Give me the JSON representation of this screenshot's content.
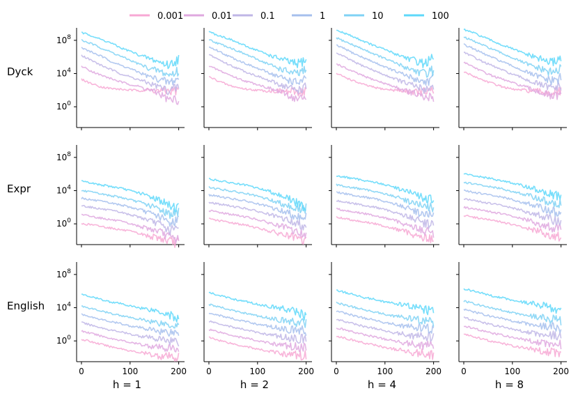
{
  "chart_data": {
    "type": "line",
    "title": "",
    "legend": {
      "placement": "top-center",
      "entries": [
        {
          "label": "0.001",
          "color": "#f7a8d4"
        },
        {
          "label": "0.01",
          "color": "#dfa8df"
        },
        {
          "label": "0.1",
          "color": "#bfb6e6"
        },
        {
          "label": "1",
          "color": "#a6bfed"
        },
        {
          "label": "10",
          "color": "#7fd2f4"
        },
        {
          "label": "100",
          "color": "#5ed8fa"
        }
      ]
    },
    "rows": [
      "Dyck",
      "Expr",
      "English"
    ],
    "columns": [
      "h = 1",
      "h = 2",
      "h = 4",
      "h = 8"
    ],
    "x_ticks": [
      0,
      100,
      200
    ],
    "x_range": [
      -10,
      212
    ],
    "y_scale": "log",
    "y_ticks": [
      {
        "exp": 0,
        "label": "10^0"
      },
      {
        "exp": 4,
        "label": "10^4"
      },
      {
        "exp": 8,
        "label": "10^8"
      }
    ],
    "y_range_log10": [
      -2.5,
      9.5
    ],
    "x_points": [
      0,
      20,
      40,
      60,
      80,
      100,
      120,
      140,
      160,
      180,
      200
    ],
    "series": {
      "Dyck": {
        "h = 1": [
          [
            3.3,
            2.8,
            2.4,
            2.2,
            2.1,
            2.0,
            2.0,
            2.0,
            1.9,
            1.9,
            2.0
          ],
          [
            4.9,
            4.3,
            3.8,
            3.4,
            3.0,
            2.7,
            2.4,
            2.0,
            1.6,
            0.8,
            0.9
          ],
          [
            6.2,
            5.6,
            5.0,
            4.5,
            4.0,
            3.6,
            3.2,
            2.8,
            2.4,
            1.9,
            2.4
          ],
          [
            7.1,
            6.6,
            6.1,
            5.5,
            5.0,
            4.6,
            4.1,
            3.6,
            3.3,
            2.9,
            3.4
          ],
          [
            8.0,
            7.6,
            7.1,
            6.6,
            6.1,
            5.6,
            5.1,
            4.6,
            4.3,
            3.8,
            4.3
          ],
          [
            8.9,
            8.6,
            8.1,
            7.7,
            7.1,
            6.7,
            6.2,
            5.8,
            5.4,
            5.0,
            5.8
          ]
        ],
        "h = 2": [
          [
            3.6,
            3.1,
            2.6,
            2.3,
            2.1,
            2.0,
            1.9,
            1.9,
            1.8,
            1.8,
            1.9
          ],
          [
            4.9,
            4.4,
            3.9,
            3.4,
            3.0,
            2.7,
            2.3,
            1.9,
            1.5,
            0.9,
            1.0
          ],
          [
            6.3,
            5.7,
            5.1,
            4.6,
            4.1,
            3.7,
            3.2,
            2.8,
            2.4,
            2.0,
            2.3
          ],
          [
            7.2,
            6.7,
            6.1,
            5.6,
            5.1,
            4.6,
            4.2,
            3.7,
            3.3,
            2.9,
            3.2
          ],
          [
            8.1,
            7.6,
            7.2,
            6.7,
            6.2,
            5.7,
            5.2,
            4.7,
            4.3,
            3.9,
            4.3
          ],
          [
            9.0,
            8.6,
            8.2,
            7.7,
            7.2,
            6.8,
            6.3,
            5.9,
            5.5,
            5.1,
            5.7
          ]
        ],
        "h = 4": [
          [
            4.0,
            3.5,
            3.0,
            2.6,
            2.3,
            2.1,
            2.0,
            1.9,
            1.8,
            1.8,
            1.8
          ],
          [
            5.2,
            4.6,
            4.1,
            3.6,
            3.2,
            2.8,
            2.4,
            2.0,
            1.6,
            1.0,
            1.2
          ],
          [
            6.5,
            5.9,
            5.3,
            4.8,
            4.3,
            3.8,
            3.4,
            2.9,
            2.5,
            2.1,
            2.4
          ],
          [
            7.4,
            6.9,
            6.3,
            5.8,
            5.3,
            4.8,
            4.3,
            3.8,
            3.4,
            3.0,
            3.3
          ],
          [
            8.3,
            7.8,
            7.3,
            6.8,
            6.3,
            5.8,
            5.3,
            4.8,
            4.4,
            4.0,
            4.4
          ],
          [
            9.2,
            8.8,
            8.3,
            7.8,
            7.3,
            6.9,
            6.4,
            6.0,
            5.6,
            5.2,
            5.8
          ]
        ],
        "h = 8": [
          [
            4.2,
            3.7,
            3.2,
            2.8,
            2.4,
            2.1,
            2.0,
            1.9,
            1.8,
            1.7,
            1.8
          ],
          [
            5.4,
            4.8,
            4.2,
            3.7,
            3.3,
            2.9,
            2.5,
            2.1,
            1.7,
            1.2,
            1.3
          ],
          [
            6.6,
            6.0,
            5.4,
            4.9,
            4.4,
            3.9,
            3.5,
            3.0,
            2.6,
            2.2,
            2.5
          ],
          [
            7.5,
            7.0,
            6.4,
            5.9,
            5.4,
            4.9,
            4.4,
            3.9,
            3.5,
            3.1,
            3.4
          ],
          [
            8.4,
            7.9,
            7.4,
            6.9,
            6.4,
            5.9,
            5.4,
            4.9,
            4.5,
            4.1,
            4.5
          ],
          [
            9.3,
            8.9,
            8.4,
            7.9,
            7.4,
            7.0,
            6.5,
            6.1,
            5.7,
            5.3,
            5.9
          ]
        ]
      },
      "Expr": {
        "h = 1": [
          [
            0.0,
            -0.1,
            -0.3,
            -0.5,
            -0.7,
            -0.9,
            -1.2,
            -1.5,
            -1.7,
            -2.1,
            -2.3
          ],
          [
            1.1,
            0.9,
            0.7,
            0.5,
            0.3,
            0.0,
            -0.3,
            -0.6,
            -0.9,
            -1.6,
            -1.9
          ],
          [
            2.2,
            2.0,
            1.8,
            1.6,
            1.4,
            1.1,
            0.8,
            0.4,
            0.0,
            -0.8,
            -0.6
          ],
          [
            3.1,
            2.9,
            2.7,
            2.5,
            2.3,
            2.0,
            1.7,
            1.3,
            0.9,
            0.1,
            0.5
          ],
          [
            4.0,
            3.8,
            3.6,
            3.4,
            3.2,
            2.9,
            2.6,
            2.2,
            1.8,
            1.2,
            1.3
          ],
          [
            5.1,
            4.9,
            4.7,
            4.5,
            4.3,
            4.0,
            3.7,
            3.3,
            2.9,
            2.2,
            2.0
          ]
        ],
        "h = 2": [
          [
            0.6,
            0.4,
            0.2,
            0.0,
            -0.2,
            -0.5,
            -0.8,
            -1.1,
            -1.4,
            -1.8,
            -2.1
          ],
          [
            1.6,
            1.4,
            1.2,
            1.0,
            0.8,
            0.5,
            0.2,
            -0.2,
            -0.5,
            -1.0,
            -1.3
          ],
          [
            2.6,
            2.4,
            2.2,
            2.0,
            1.8,
            1.5,
            1.2,
            0.8,
            0.5,
            0.0,
            -0.2
          ],
          [
            3.5,
            3.3,
            3.1,
            2.9,
            2.7,
            2.4,
            2.1,
            1.7,
            1.4,
            0.9,
            0.9
          ],
          [
            4.4,
            4.2,
            4.0,
            3.8,
            3.6,
            3.3,
            3.0,
            2.6,
            2.3,
            1.8,
            1.8
          ],
          [
            5.4,
            5.2,
            5.0,
            4.8,
            4.6,
            4.3,
            4.0,
            3.6,
            3.2,
            2.5,
            2.0
          ]
        ],
        "h = 4": [
          [
            0.8,
            0.6,
            0.4,
            0.2,
            0.0,
            -0.3,
            -0.6,
            -0.9,
            -1.3,
            -1.7,
            -1.9
          ],
          [
            1.8,
            1.6,
            1.4,
            1.2,
            1.0,
            0.7,
            0.4,
            0.0,
            -0.4,
            -0.9,
            -1.1
          ],
          [
            2.8,
            2.6,
            2.4,
            2.2,
            2.0,
            1.7,
            1.4,
            1.0,
            0.6,
            0.1,
            0.0
          ],
          [
            3.8,
            3.6,
            3.4,
            3.2,
            3.0,
            2.7,
            2.4,
            2.0,
            1.6,
            1.1,
            1.0
          ],
          [
            4.7,
            4.5,
            4.3,
            4.1,
            3.9,
            3.6,
            3.3,
            2.9,
            2.5,
            2.0,
            2.0
          ],
          [
            5.8,
            5.6,
            5.4,
            5.2,
            5.0,
            4.7,
            4.4,
            4.0,
            3.6,
            3.1,
            2.9
          ]
        ],
        "h = 8": [
          [
            1.0,
            0.8,
            0.6,
            0.4,
            0.2,
            -0.1,
            -0.4,
            -0.7,
            -1.0,
            -1.4,
            -1.7
          ],
          [
            2.0,
            1.8,
            1.6,
            1.4,
            1.2,
            0.9,
            0.6,
            0.3,
            -0.1,
            -0.5,
            -0.8
          ],
          [
            3.0,
            2.8,
            2.6,
            2.4,
            2.2,
            1.9,
            1.6,
            1.3,
            0.9,
            0.5,
            0.3
          ],
          [
            4.0,
            3.8,
            3.6,
            3.4,
            3.2,
            2.9,
            2.6,
            2.3,
            1.9,
            1.5,
            1.3
          ],
          [
            5.0,
            4.8,
            4.6,
            4.4,
            4.2,
            3.9,
            3.6,
            3.3,
            2.9,
            2.5,
            2.3
          ],
          [
            6.0,
            5.8,
            5.6,
            5.4,
            5.2,
            4.9,
            4.6,
            4.3,
            3.9,
            3.5,
            3.3
          ]
        ]
      },
      "English": {
        "h = 1": [
          [
            0.2,
            -0.1,
            -0.4,
            -0.7,
            -0.9,
            -1.2,
            -1.4,
            -1.6,
            -1.8,
            -1.9,
            -2.0
          ],
          [
            1.2,
            0.9,
            0.6,
            0.3,
            0.1,
            -0.2,
            -0.4,
            -0.6,
            -0.8,
            -0.9,
            -1.0
          ],
          [
            2.2,
            1.9,
            1.6,
            1.3,
            1.1,
            0.8,
            0.6,
            0.4,
            0.2,
            0.1,
            0.0
          ],
          [
            3.2,
            2.9,
            2.6,
            2.3,
            2.1,
            1.8,
            1.6,
            1.4,
            1.2,
            1.1,
            1.0
          ],
          [
            4.2,
            3.9,
            3.6,
            3.3,
            3.1,
            2.8,
            2.6,
            2.4,
            2.2,
            2.0,
            1.9
          ],
          [
            5.6,
            5.3,
            5.0,
            4.7,
            4.5,
            4.2,
            4.0,
            3.8,
            3.6,
            3.2,
            2.6
          ]
        ],
        "h = 2": [
          [
            0.4,
            0.1,
            -0.2,
            -0.5,
            -0.7,
            -1.0,
            -1.2,
            -1.4,
            -1.6,
            -1.7,
            -1.8
          ],
          [
            1.4,
            1.1,
            0.8,
            0.5,
            0.3,
            0.0,
            -0.2,
            -0.4,
            -0.6,
            -0.7,
            -0.8
          ],
          [
            2.4,
            2.1,
            1.8,
            1.5,
            1.3,
            1.0,
            0.8,
            0.6,
            0.4,
            0.3,
            0.2
          ],
          [
            3.4,
            3.1,
            2.8,
            2.5,
            2.3,
            2.0,
            1.8,
            1.6,
            1.4,
            1.3,
            1.2
          ],
          [
            4.4,
            4.1,
            3.8,
            3.5,
            3.3,
            3.0,
            2.8,
            2.6,
            2.4,
            2.2,
            2.1
          ],
          [
            5.8,
            5.5,
            5.2,
            4.9,
            4.7,
            4.4,
            4.2,
            4.0,
            3.8,
            3.5,
            3.0
          ]
        ],
        "h = 4": [
          [
            0.6,
            0.3,
            0.0,
            -0.3,
            -0.5,
            -0.8,
            -1.0,
            -1.2,
            -1.4,
            -1.5,
            -1.6
          ],
          [
            1.6,
            1.3,
            1.0,
            0.7,
            0.5,
            0.2,
            0.0,
            -0.2,
            -0.4,
            -0.5,
            -0.6
          ],
          [
            2.6,
            2.3,
            2.0,
            1.7,
            1.5,
            1.2,
            1.0,
            0.8,
            0.6,
            0.5,
            0.4
          ],
          [
            3.6,
            3.3,
            3.0,
            2.7,
            2.5,
            2.2,
            2.0,
            1.8,
            1.6,
            1.5,
            1.4
          ],
          [
            4.6,
            4.3,
            4.0,
            3.7,
            3.5,
            3.2,
            3.0,
            2.8,
            2.6,
            2.4,
            2.3
          ],
          [
            6.1,
            5.8,
            5.5,
            5.2,
            5.0,
            4.7,
            4.5,
            4.3,
            4.1,
            3.8,
            3.4
          ]
        ],
        "h = 8": [
          [
            0.8,
            0.5,
            0.2,
            -0.1,
            -0.3,
            -0.6,
            -0.8,
            -1.0,
            -1.2,
            -1.3,
            -1.4
          ],
          [
            1.8,
            1.5,
            1.2,
            0.9,
            0.7,
            0.4,
            0.2,
            0.0,
            -0.2,
            -0.3,
            -0.4
          ],
          [
            2.8,
            2.5,
            2.2,
            1.9,
            1.7,
            1.4,
            1.2,
            1.0,
            0.8,
            0.7,
            0.6
          ],
          [
            3.8,
            3.5,
            3.2,
            2.9,
            2.7,
            2.4,
            2.2,
            2.0,
            1.8,
            1.7,
            1.6
          ],
          [
            4.8,
            4.5,
            4.2,
            3.9,
            3.7,
            3.4,
            3.2,
            3.0,
            2.8,
            2.6,
            2.5
          ],
          [
            6.3,
            6.0,
            5.7,
            5.4,
            5.2,
            4.9,
            4.7,
            4.5,
            4.3,
            4.0,
            3.6
          ]
        ]
      }
    }
  }
}
